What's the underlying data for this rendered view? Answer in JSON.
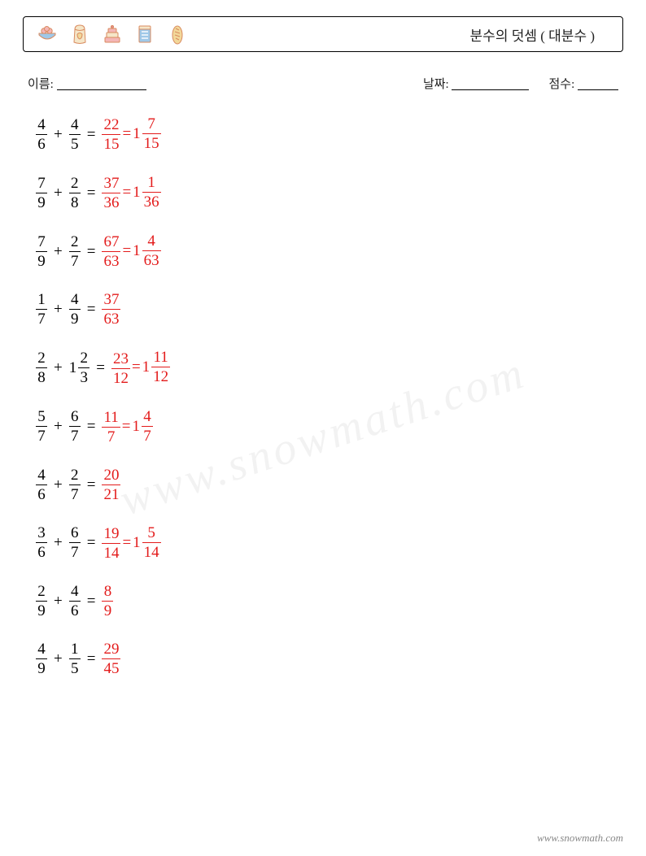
{
  "header": {
    "title": "분수의 덧셈 ( 대분수 )",
    "icon_names": [
      "egg-basket-icon",
      "flour-bag-icon",
      "cake-icon",
      "recipe-note-icon",
      "bread-icon"
    ],
    "icon_colors": {
      "outline": "#d98b5f",
      "accent_pink": "#f4b6b6",
      "accent_blue": "#9fc8e8",
      "accent_cream": "#f5e6c8",
      "accent_yellow": "#f2d89a"
    }
  },
  "info": {
    "name_label": "이름:",
    "date_label": "날짜:",
    "score_label": "점수:",
    "blank_widths": {
      "name": "110px",
      "date": "95px",
      "score": "50px"
    }
  },
  "typography": {
    "body_fontsize": 19,
    "title_fontsize": 17,
    "info_fontsize": 15,
    "text_color": "#222222",
    "answer_color": "#e31b1b"
  },
  "problems": [
    {
      "a": {
        "n": 4,
        "d": 6
      },
      "b": {
        "n": 4,
        "d": 5
      },
      "sum": {
        "n": 22,
        "d": 15
      },
      "mixed": {
        "w": 1,
        "n": 7,
        "d": 15
      }
    },
    {
      "a": {
        "n": 7,
        "d": 9
      },
      "b": {
        "n": 2,
        "d": 8
      },
      "sum": {
        "n": 37,
        "d": 36
      },
      "mixed": {
        "w": 1,
        "n": 1,
        "d": 36
      }
    },
    {
      "a": {
        "n": 7,
        "d": 9
      },
      "b": {
        "n": 2,
        "d": 7
      },
      "sum": {
        "n": 67,
        "d": 63
      },
      "mixed": {
        "w": 1,
        "n": 4,
        "d": 63
      }
    },
    {
      "a": {
        "n": 1,
        "d": 7
      },
      "b": {
        "n": 4,
        "d": 9
      },
      "sum": {
        "n": 37,
        "d": 63
      }
    },
    {
      "a": {
        "n": 2,
        "d": 8
      },
      "b": {
        "w": 1,
        "n": 2,
        "d": 3
      },
      "sum": {
        "n": 23,
        "d": 12
      },
      "mixed": {
        "w": 1,
        "n": 11,
        "d": 12
      }
    },
    {
      "a": {
        "n": 5,
        "d": 7
      },
      "b": {
        "n": 6,
        "d": 7
      },
      "sum": {
        "n": 11,
        "d": 7
      },
      "mixed": {
        "w": 1,
        "n": 4,
        "d": 7
      }
    },
    {
      "a": {
        "n": 4,
        "d": 6
      },
      "b": {
        "n": 2,
        "d": 7
      },
      "sum": {
        "n": 20,
        "d": 21
      }
    },
    {
      "a": {
        "n": 3,
        "d": 6
      },
      "b": {
        "n": 6,
        "d": 7
      },
      "sum": {
        "n": 19,
        "d": 14
      },
      "mixed": {
        "w": 1,
        "n": 5,
        "d": 14
      }
    },
    {
      "a": {
        "n": 2,
        "d": 9
      },
      "b": {
        "n": 4,
        "d": 6
      },
      "sum": {
        "n": 8,
        "d": 9
      }
    },
    {
      "a": {
        "n": 4,
        "d": 9
      },
      "b": {
        "n": 1,
        "d": 5
      },
      "sum": {
        "n": 29,
        "d": 45
      }
    }
  ],
  "watermark": "www.snowmath.com",
  "footer": "www.snowmath.com"
}
